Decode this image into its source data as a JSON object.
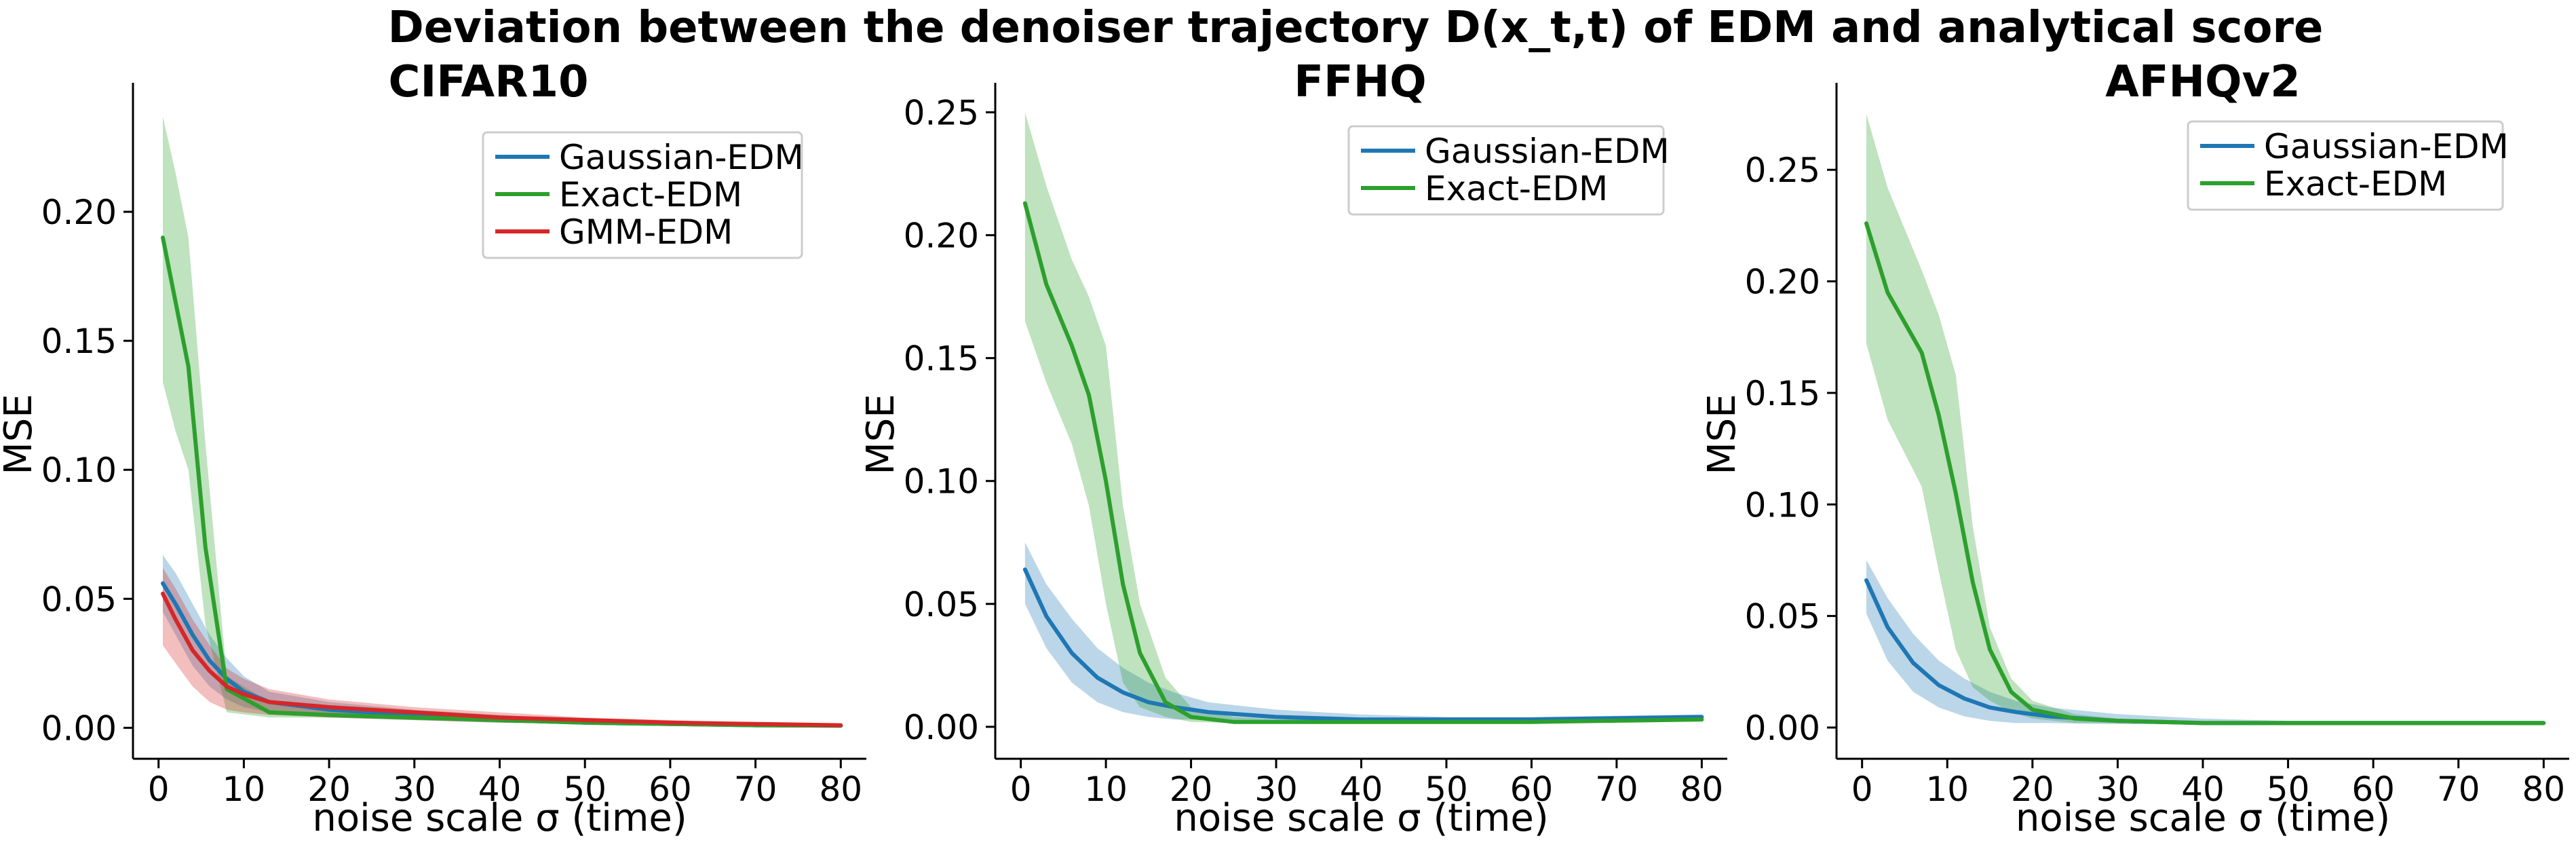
{
  "suptitle": "Deviation between the denoiser trajectory D(x_t,t) of EDM and analytical score",
  "colors": {
    "Gaussian-EDM": "#1f77b4",
    "Exact-EDM": "#2ca02c",
    "GMM-EDM": "#d62728"
  },
  "chart_data": [
    {
      "type": "line",
      "title": "CIFAR10",
      "xlabel": "noise scale σ (time)",
      "ylabel": "MSE",
      "xlim": [
        -3,
        83
      ],
      "ylim": [
        -0.012,
        0.25
      ],
      "xticks": [
        0,
        10,
        20,
        30,
        40,
        50,
        60,
        70,
        80
      ],
      "yticks": [
        0.0,
        0.05,
        0.1,
        0.15,
        0.2
      ],
      "ytick_labels": [
        "0.00",
        "0.05",
        "0.10",
        "0.15",
        "0.20"
      ],
      "grid": false,
      "legend": "top-right",
      "series": [
        {
          "name": "Gaussian-EDM",
          "x": [
            0.5,
            2,
            4,
            6,
            8,
            10,
            13,
            20,
            30,
            40,
            50,
            60,
            70,
            80
          ],
          "y": [
            0.056,
            0.048,
            0.036,
            0.026,
            0.019,
            0.014,
            0.01,
            0.007,
            0.005,
            0.003,
            0.002,
            0.0015,
            0.001,
            0.0008
          ],
          "lower": [
            0.045,
            0.036,
            0.024,
            0.016,
            0.011,
            0.008,
            0.006,
            0.004,
            0.003,
            0.002,
            0.0015,
            0.001,
            0.0008,
            0.0006
          ],
          "upper": [
            0.067,
            0.06,
            0.048,
            0.036,
            0.027,
            0.02,
            0.014,
            0.01,
            0.007,
            0.005,
            0.003,
            0.002,
            0.0015,
            0.001
          ]
        },
        {
          "name": "Exact-EDM",
          "x": [
            0.5,
            2,
            3.5,
            5.5,
            8,
            13,
            20,
            30,
            40,
            50,
            60,
            70,
            80
          ],
          "y": [
            0.19,
            0.165,
            0.14,
            0.07,
            0.015,
            0.006,
            0.005,
            0.004,
            0.003,
            0.002,
            0.0015,
            0.001,
            0.0008
          ],
          "lower": [
            0.134,
            0.115,
            0.1,
            0.04,
            0.006,
            0.004,
            0.004,
            0.003,
            0.002,
            0.0015,
            0.001,
            0.0008,
            0.0006
          ],
          "upper": [
            0.237,
            0.215,
            0.19,
            0.11,
            0.02,
            0.01,
            0.007,
            0.005,
            0.004,
            0.003,
            0.002,
            0.0015,
            0.001
          ]
        },
        {
          "name": "GMM-EDM",
          "x": [
            0.5,
            2,
            4,
            6,
            8,
            10,
            13,
            20,
            30,
            40,
            50,
            60,
            70,
            80
          ],
          "y": [
            0.052,
            0.042,
            0.03,
            0.022,
            0.016,
            0.013,
            0.01,
            0.008,
            0.006,
            0.004,
            0.003,
            0.002,
            0.0015,
            0.001
          ],
          "lower": [
            0.032,
            0.025,
            0.016,
            0.01,
            0.007,
            0.006,
            0.005,
            0.004,
            0.003,
            0.002,
            0.0015,
            0.001,
            0.0008,
            0.0006
          ],
          "upper": [
            0.062,
            0.054,
            0.042,
            0.032,
            0.023,
            0.019,
            0.015,
            0.011,
            0.008,
            0.006,
            0.004,
            0.003,
            0.002,
            0.0015
          ]
        }
      ]
    },
    {
      "type": "line",
      "title": "FFHQ",
      "xlabel": "noise scale σ (time)",
      "ylabel": "MSE",
      "xlim": [
        -3,
        83
      ],
      "ylim": [
        -0.013,
        0.262
      ],
      "xticks": [
        0,
        10,
        20,
        30,
        40,
        50,
        60,
        70,
        80
      ],
      "yticks": [
        0.0,
        0.05,
        0.1,
        0.15,
        0.2,
        0.25
      ],
      "ytick_labels": [
        "0.00",
        "0.05",
        "0.10",
        "0.15",
        "0.20",
        "0.25"
      ],
      "grid": false,
      "legend": "top-right",
      "series": [
        {
          "name": "Gaussian-EDM",
          "x": [
            0.5,
            3,
            6,
            9,
            12,
            15,
            18,
            22,
            30,
            40,
            50,
            60,
            70,
            80
          ],
          "y": [
            0.064,
            0.045,
            0.03,
            0.02,
            0.014,
            0.01,
            0.008,
            0.006,
            0.004,
            0.003,
            0.003,
            0.003,
            0.0035,
            0.004
          ],
          "lower": [
            0.05,
            0.032,
            0.018,
            0.01,
            0.006,
            0.004,
            0.003,
            0.003,
            0.002,
            0.002,
            0.002,
            0.002,
            0.0025,
            0.003
          ],
          "upper": [
            0.075,
            0.058,
            0.044,
            0.032,
            0.024,
            0.018,
            0.014,
            0.01,
            0.007,
            0.005,
            0.004,
            0.004,
            0.0045,
            0.005
          ]
        },
        {
          "name": "Exact-EDM",
          "x": [
            0.5,
            3,
            6,
            8,
            10,
            12,
            14,
            17,
            20,
            25,
            30,
            40,
            50,
            60,
            70,
            80
          ],
          "y": [
            0.213,
            0.18,
            0.155,
            0.135,
            0.1,
            0.058,
            0.03,
            0.01,
            0.004,
            0.002,
            0.002,
            0.002,
            0.002,
            0.002,
            0.0025,
            0.003
          ],
          "lower": [
            0.165,
            0.14,
            0.115,
            0.09,
            0.05,
            0.018,
            0.008,
            0.004,
            0.002,
            0.0015,
            0.0015,
            0.0015,
            0.0015,
            0.0015,
            0.002,
            0.0025
          ],
          "upper": [
            0.25,
            0.22,
            0.19,
            0.175,
            0.155,
            0.09,
            0.05,
            0.02,
            0.008,
            0.004,
            0.003,
            0.003,
            0.003,
            0.003,
            0.0035,
            0.004
          ]
        }
      ]
    },
    {
      "type": "line",
      "title": "AFHQv2",
      "xlabel": "noise scale σ (time)",
      "ylabel": "MSE",
      "xlim": [
        -3,
        83
      ],
      "ylim": [
        -0.014,
        0.289
      ],
      "xticks": [
        0,
        10,
        20,
        30,
        40,
        50,
        60,
        70,
        80
      ],
      "yticks": [
        0.0,
        0.05,
        0.1,
        0.15,
        0.2,
        0.25
      ],
      "ytick_labels": [
        "0.00",
        "0.05",
        "0.10",
        "0.15",
        "0.20",
        "0.25"
      ],
      "grid": false,
      "legend": "top-right",
      "series": [
        {
          "name": "Gaussian-EDM",
          "x": [
            0.5,
            3,
            6,
            9,
            12,
            15,
            18,
            22,
            30,
            40,
            50,
            60,
            70,
            80
          ],
          "y": [
            0.066,
            0.045,
            0.029,
            0.019,
            0.013,
            0.009,
            0.007,
            0.005,
            0.003,
            0.002,
            0.002,
            0.002,
            0.002,
            0.002
          ],
          "lower": [
            0.051,
            0.03,
            0.016,
            0.009,
            0.005,
            0.003,
            0.002,
            0.002,
            0.0015,
            0.0015,
            0.0015,
            0.0015,
            0.0015,
            0.0015
          ],
          "upper": [
            0.075,
            0.058,
            0.042,
            0.03,
            0.022,
            0.016,
            0.012,
            0.009,
            0.006,
            0.004,
            0.003,
            0.003,
            0.003,
            0.003
          ]
        },
        {
          "name": "Exact-EDM",
          "x": [
            0.5,
            3,
            7,
            9,
            11,
            13,
            15,
            17.5,
            20,
            25,
            30,
            40,
            50,
            60,
            70,
            80
          ],
          "y": [
            0.226,
            0.195,
            0.168,
            0.14,
            0.105,
            0.065,
            0.035,
            0.016,
            0.008,
            0.004,
            0.003,
            0.002,
            0.002,
            0.002,
            0.002,
            0.002
          ],
          "lower": [
            0.172,
            0.138,
            0.108,
            0.07,
            0.035,
            0.018,
            0.012,
            0.007,
            0.004,
            0.002,
            0.002,
            0.0015,
            0.0015,
            0.0015,
            0.0015,
            0.0015
          ],
          "upper": [
            0.275,
            0.242,
            0.205,
            0.185,
            0.158,
            0.09,
            0.045,
            0.022,
            0.012,
            0.006,
            0.004,
            0.003,
            0.003,
            0.003,
            0.003,
            0.003
          ]
        }
      ]
    }
  ]
}
